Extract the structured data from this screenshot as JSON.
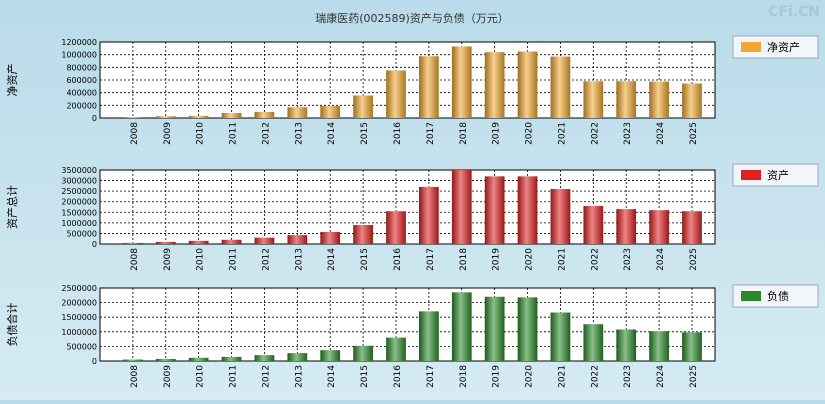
{
  "title": "瑞康医药(002589)资产与负债（万元）",
  "watermark": "CFi.CN",
  "chart_data": [
    {
      "type": "bar",
      "ylabel": "净资产",
      "legend": "净资产",
      "legend_position": "right",
      "color": "#f0a830",
      "grid": true,
      "ylim": [
        0,
        1200000
      ],
      "yticks": [
        "1200000",
        "1000000",
        "800000",
        "600000",
        "400000",
        "200000",
        "0"
      ],
      "tick_values": [
        1200000,
        1000000,
        800000,
        600000,
        400000,
        200000,
        0
      ],
      "categories": [
        "2008",
        "2009",
        "2010",
        "2011",
        "2012",
        "2013",
        "2014",
        "2015",
        "2016",
        "2017",
        "2018",
        "2019",
        "2020",
        "2021",
        "2022",
        "2023",
        "2024",
        "2025"
      ],
      "values": [
        15000,
        28000,
        33000,
        80000,
        95000,
        170000,
        190000,
        355000,
        750000,
        975000,
        1130000,
        1040000,
        1050000,
        970000,
        580000,
        580000,
        575000,
        545000
      ]
    },
    {
      "type": "bar",
      "ylabel": "资产总计",
      "legend": "资产",
      "legend_position": "right",
      "color": "#e02020",
      "grid": true,
      "ylim": [
        0,
        3500000
      ],
      "yticks": [
        "3500000",
        "3000000",
        "2500000",
        "2000000",
        "1500000",
        "1000000",
        "500000",
        "0"
      ],
      "tick_values": [
        3500000,
        3000000,
        2500000,
        2000000,
        1500000,
        1000000,
        500000,
        0
      ],
      "categories": [
        "2008",
        "2009",
        "2010",
        "2011",
        "2012",
        "2013",
        "2014",
        "2015",
        "2016",
        "2017",
        "2018",
        "2019",
        "2020",
        "2021",
        "2022",
        "2023",
        "2024",
        "2025"
      ],
      "values": [
        50000,
        100000,
        150000,
        200000,
        300000,
        420000,
        570000,
        900000,
        1550000,
        2700000,
        3500000,
        3200000,
        3200000,
        2600000,
        1800000,
        1650000,
        1600000,
        1550000
      ]
    },
    {
      "type": "bar",
      "ylabel": "负债合计",
      "legend": "负债",
      "legend_position": "right",
      "color": "#2a8a2a",
      "grid": true,
      "ylim": [
        0,
        2500000
      ],
      "yticks": [
        "2500000",
        "2000000",
        "1500000",
        "1000000",
        "500000",
        "0"
      ],
      "tick_values": [
        2500000,
        2000000,
        1500000,
        1000000,
        500000,
        0
      ],
      "categories": [
        "2008",
        "2009",
        "2010",
        "2011",
        "2012",
        "2013",
        "2014",
        "2015",
        "2016",
        "2017",
        "2018",
        "2019",
        "2020",
        "2021",
        "2022",
        "2023",
        "2024",
        "2025"
      ],
      "values": [
        50000,
        70000,
        110000,
        140000,
        200000,
        270000,
        370000,
        520000,
        800000,
        1700000,
        2350000,
        2200000,
        2180000,
        1660000,
        1260000,
        1080000,
        1020000,
        980000
      ]
    }
  ]
}
